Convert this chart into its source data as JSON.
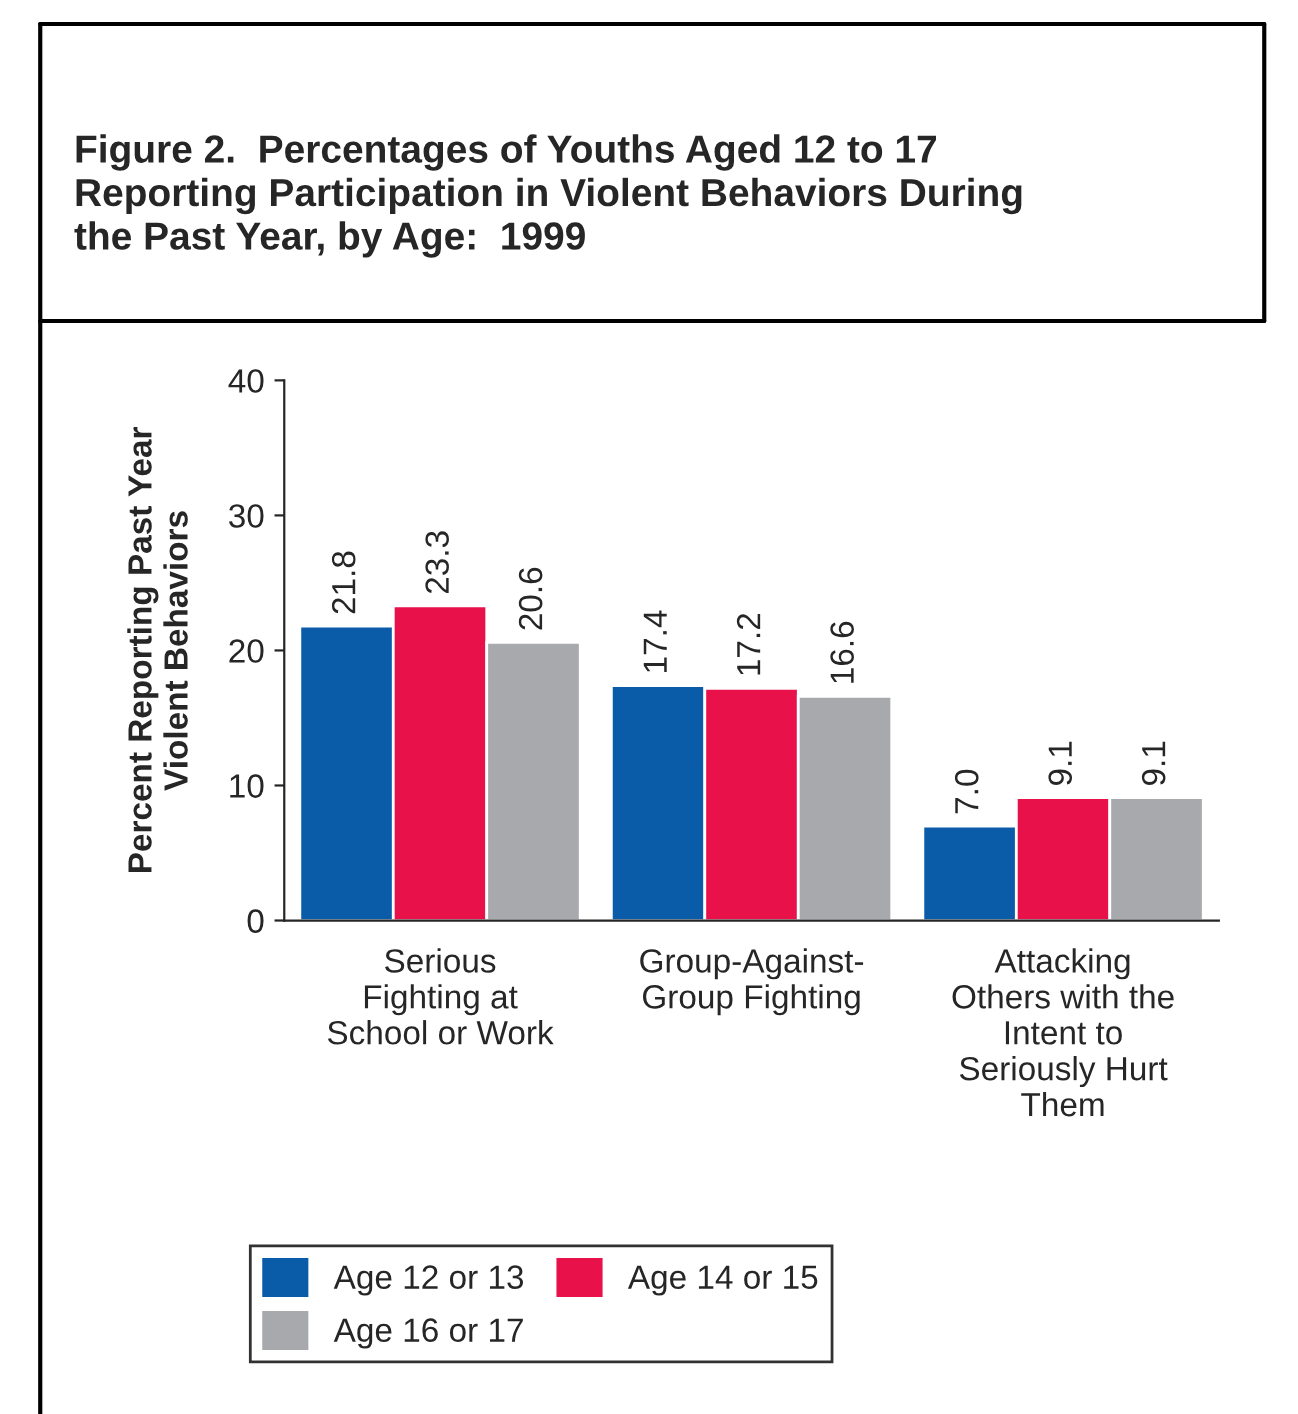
{
  "chart_data": {
    "type": "bar",
    "title": "Figure 2.  Percentages of Youths Aged 12 to 17\nReporting Participation in Violent Behaviors During\nthe Past Year, by Age:  1999",
    "ylabel": "Percent Reporting Past Year\nViolent Behaviors",
    "categories": [
      "Serious\nFighting at\nSchool or Work",
      "Group-Against-\nGroup Fighting",
      "Attacking\nOthers with the\nIntent to\nSeriously Hurt\nThem"
    ],
    "series": [
      {
        "name": "Age 12 or 13",
        "color": "#0a5ca8",
        "values": [
          21.8,
          17.4,
          7.0
        ]
      },
      {
        "name": "Age 14 or 15",
        "color": "#e8114a",
        "values": [
          23.3,
          17.2,
          9.1
        ]
      },
      {
        "name": "Age 16 or 17",
        "color": "#a7a9ac",
        "values": [
          20.6,
          16.6,
          9.1
        ]
      }
    ],
    "value_labels": [
      [
        "21.8",
        "17.4",
        "7.0"
      ],
      [
        "23.3",
        "17.2",
        "9.1"
      ],
      [
        "20.6",
        "16.6",
        "9.1"
      ]
    ],
    "ylim": [
      0,
      40
    ],
    "yticks": [
      0,
      10,
      20,
      30,
      40
    ],
    "grid": false,
    "legend": "bottom"
  }
}
